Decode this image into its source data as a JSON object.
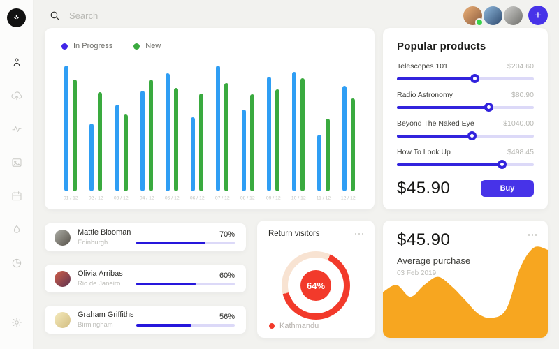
{
  "topbar": {
    "search_placeholder": "Search",
    "add_button_label": "+",
    "avatars": [
      {
        "name": "avatar-user-1",
        "status": "online"
      },
      {
        "name": "avatar-user-2",
        "status": ""
      },
      {
        "name": "avatar-user-3",
        "status": ""
      }
    ]
  },
  "sidebar": {
    "items": [
      "app-logo",
      "profile",
      "cloud-upload",
      "activity",
      "image",
      "calendar",
      "water-drop",
      "pie-chart",
      "settings"
    ],
    "active_item": "profile"
  },
  "colors": {
    "accent_indigo": "#3223dd",
    "buy_indigo": "#4733e8",
    "bar_blue": "#2f9ef4",
    "bar_green": "#3aaa3f",
    "legend_indigo": "#4126e8",
    "red": "#f23a2b",
    "red_track": "#f8e3d2",
    "orange": "#f7a620",
    "online_green": "#38d24a",
    "progress_track": "#dcd9f8",
    "background": "#f2f2ef"
  },
  "chart_data": [
    {
      "id": "orders_bar",
      "type": "bar",
      "categories": [
        "01 / 12",
        "02 / 12",
        "03 / 12",
        "04 / 12",
        "05 / 12",
        "06 / 12",
        "07 / 12",
        "08 / 12",
        "09 / 12",
        "10 / 12",
        "11 / 12",
        "12 / 12"
      ],
      "series": [
        {
          "name": "In Progress",
          "color": "#2f9ef4",
          "values": [
            100,
            54,
            69,
            80,
            94,
            59,
            100,
            65,
            91,
            95,
            45,
            84
          ]
        },
        {
          "name": "New",
          "color": "#3aaa3f",
          "values": [
            89,
            79,
            61,
            89,
            82,
            78,
            86,
            77,
            81,
            90,
            58,
            74
          ]
        }
      ],
      "legend": [
        {
          "label": "In Progress",
          "color": "#4126e8"
        },
        {
          "label": "New",
          "color": "#3aaa3f"
        }
      ],
      "ylim": [
        0,
        100
      ],
      "grid": false,
      "legend_position": "top-left"
    },
    {
      "id": "return_visitors_donut",
      "type": "pie",
      "value": 64,
      "value_label": "64%",
      "segments": [
        {
          "label": "Kathmandu",
          "value": 64,
          "color": "#f23a2b"
        },
        {
          "label": "other",
          "value": 36,
          "color": "#f8e3d2"
        }
      ],
      "legend_position": "bottom-left"
    },
    {
      "id": "average_purchase_area",
      "type": "area",
      "values": [
        39,
        45,
        35,
        45,
        52,
        44,
        32,
        20,
        17,
        25,
        60,
        77,
        75
      ],
      "color": "#f7a620",
      "grid": false
    }
  ],
  "popular_products": {
    "title": "Popular products",
    "items": [
      {
        "name": "Telescopes 101",
        "price": "$204.60",
        "slider_percent": 57
      },
      {
        "name": "Radio Astronomy",
        "price": "$80.90",
        "slider_percent": 67
      },
      {
        "name": "Beyond The Naked Eye",
        "price": "$1040.00",
        "slider_percent": 55
      },
      {
        "name": "How To Look Up",
        "price": "$498.45",
        "slider_percent": 77
      }
    ],
    "total": "$45.90",
    "buy_label": "Buy"
  },
  "top_customers": [
    {
      "name": "Mattie Blooman",
      "city": "Edinburgh",
      "percent": 70,
      "percent_label": "70%"
    },
    {
      "name": "Olivia Arribas",
      "city": "Rio de Janeiro",
      "percent": 60,
      "percent_label": "60%"
    },
    {
      "name": "Graham Griffiths",
      "city": "Birmingham",
      "percent": 56,
      "percent_label": "56%"
    }
  ],
  "return_visitors": {
    "title": "Return visitors",
    "value_label": "64%",
    "legend_label": "Kathmandu"
  },
  "average_purchase": {
    "amount": "$45.90",
    "label": "Average purchase",
    "date": "03 Feb 2019"
  }
}
